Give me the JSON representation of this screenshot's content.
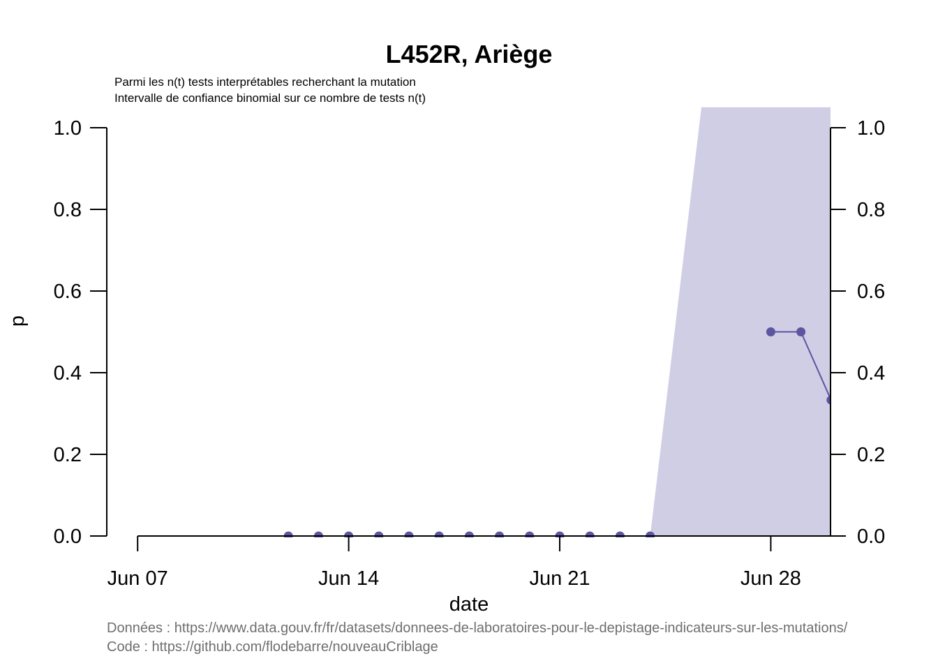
{
  "chart_data": {
    "type": "line",
    "title": "L452R, Ariège",
    "subtitle_lines": [
      "Parmi les n(t) tests interprétables recherchant la mutation",
      "Intervalle de confiance binomial sur ce nombre de tests n(t)"
    ],
    "xlabel": "date",
    "ylabel": "p",
    "x_ticks": [
      "Jun 07",
      "Jun 14",
      "Jun 21",
      "Jun 28"
    ],
    "y_ticks": [
      "0.0",
      "0.2",
      "0.4",
      "0.6",
      "0.8",
      "1.0"
    ],
    "ylim": [
      0,
      1
    ],
    "xlim": [
      "2021-06-06",
      "2021-06-30"
    ],
    "series": [
      {
        "values": [
          {
            "x": "2021-06-12",
            "y": 0
          },
          {
            "x": "2021-06-13",
            "y": 0
          },
          {
            "x": "2021-06-14",
            "y": 0
          },
          {
            "x": "2021-06-15",
            "y": 0
          },
          {
            "x": "2021-06-16",
            "y": 0
          },
          {
            "x": "2021-06-17",
            "y": 0
          },
          {
            "x": "2021-06-18",
            "y": 0
          },
          {
            "x": "2021-06-19",
            "y": 0
          },
          {
            "x": "2021-06-20",
            "y": 0
          },
          {
            "x": "2021-06-21",
            "y": 0
          },
          {
            "x": "2021-06-22",
            "y": 0
          },
          {
            "x": "2021-06-23",
            "y": 0
          },
          {
            "x": "2021-06-24",
            "y": 0
          },
          {
            "x": "2021-06-28",
            "y": 0.5
          },
          {
            "x": "2021-06-29",
            "y": 0.5
          },
          {
            "x": "2021-06-30",
            "y": 0.333
          }
        ]
      }
    ],
    "confidence_band": [
      {
        "x": "2021-06-24",
        "lower": 0,
        "upper": 0
      },
      {
        "x": "2021-06-25.7",
        "lower": 0,
        "upper": 1.05
      },
      {
        "x": "2021-06-30",
        "lower": 0,
        "upper": 1.05
      }
    ],
    "grid": false,
    "colors": {
      "series": "#5c55a0",
      "band": "#d0cee5",
      "axis": "#000000",
      "footer": "#6e6e6e"
    }
  },
  "footer": {
    "data_line": "Données : https://www.data.gouv.fr/fr/datasets/donnees-de-laboratoires-pour-le-depistage-indicateurs-sur-les-mutations/",
    "code_line": "Code : https://github.com/flodebarre/nouveauCriblage"
  }
}
